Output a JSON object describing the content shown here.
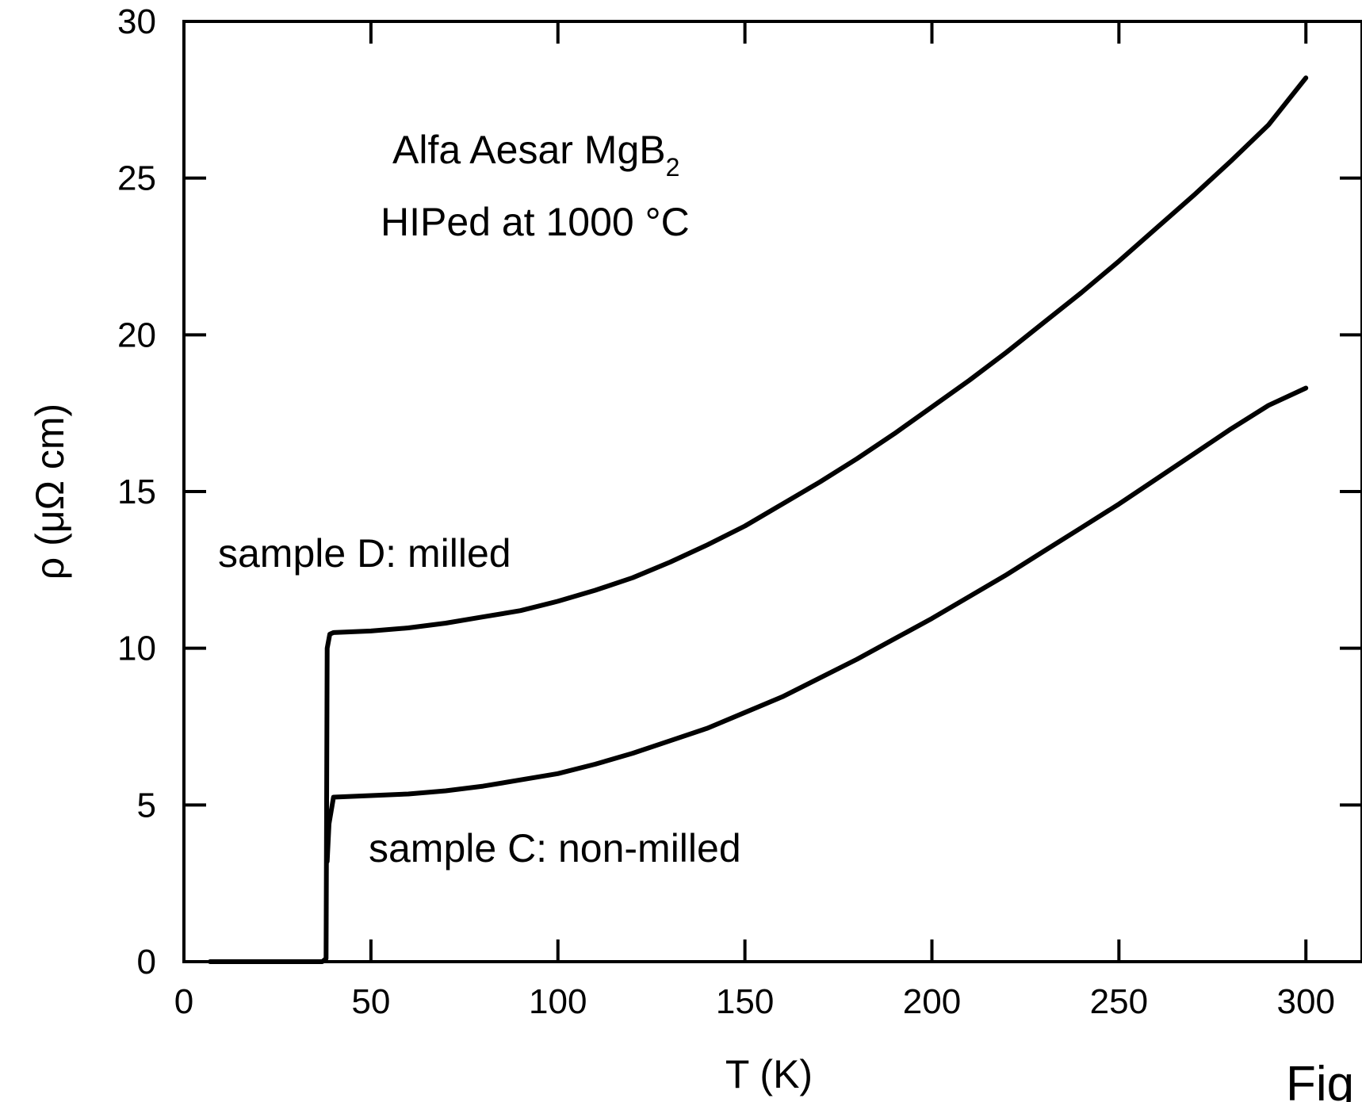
{
  "chart_data": {
    "type": "line",
    "xlabel": "T (K)",
    "ylabel": "ρ (μΩ cm)",
    "xlim": [
      0,
      315
    ],
    "ylim": [
      0,
      30
    ],
    "xticks": [
      0,
      50,
      100,
      150,
      200,
      250,
      300
    ],
    "yticks": [
      0,
      5,
      10,
      15,
      20,
      25,
      30
    ],
    "xtick_labels": [
      "0",
      "50",
      "100",
      "150",
      "200",
      "250",
      "300"
    ],
    "ytick_labels": [
      "0",
      "5",
      "10",
      "15",
      "20",
      "25",
      "30"
    ],
    "grid": false,
    "legend": "none",
    "annotations": {
      "line1_main": "Alfa Aesar MgB",
      "line1_sub": "2",
      "line2": "HIPed at 1000 °C",
      "sample_d": "sample D: milled",
      "sample_c": "sample C: non-milled"
    },
    "figure_label": "Fig",
    "series": [
      {
        "name": "sample D: milled",
        "x": [
          7,
          20,
          30,
          37,
          38,
          38.3,
          39,
          40,
          50,
          60,
          70,
          80,
          90,
          100,
          110,
          120,
          130,
          140,
          150,
          160,
          170,
          180,
          190,
          200,
          210,
          220,
          230,
          240,
          250,
          260,
          270,
          280,
          290,
          300
        ],
        "y": [
          0,
          0,
          0,
          0,
          0.1,
          10.0,
          10.45,
          10.5,
          10.55,
          10.65,
          10.8,
          11.0,
          11.2,
          11.5,
          11.85,
          12.25,
          12.75,
          13.3,
          13.9,
          14.6,
          15.3,
          16.05,
          16.85,
          17.7,
          18.55,
          19.45,
          20.4,
          21.35,
          22.35,
          23.4,
          24.45,
          25.55,
          26.7,
          28.2
        ]
      },
      {
        "name": "sample C: non-milled",
        "x": [
          38.3,
          38.8,
          40,
          50,
          60,
          70,
          80,
          90,
          100,
          110,
          120,
          130,
          140,
          150,
          160,
          170,
          180,
          190,
          200,
          210,
          220,
          230,
          240,
          250,
          260,
          270,
          280,
          290,
          300
        ],
        "y": [
          3.2,
          4.4,
          5.25,
          5.3,
          5.35,
          5.45,
          5.6,
          5.8,
          6.0,
          6.3,
          6.65,
          7.05,
          7.45,
          7.95,
          8.45,
          9.05,
          9.65,
          10.3,
          10.95,
          11.65,
          12.35,
          13.1,
          13.85,
          14.6,
          15.4,
          16.2,
          17.0,
          17.75,
          18.3
        ]
      }
    ]
  }
}
